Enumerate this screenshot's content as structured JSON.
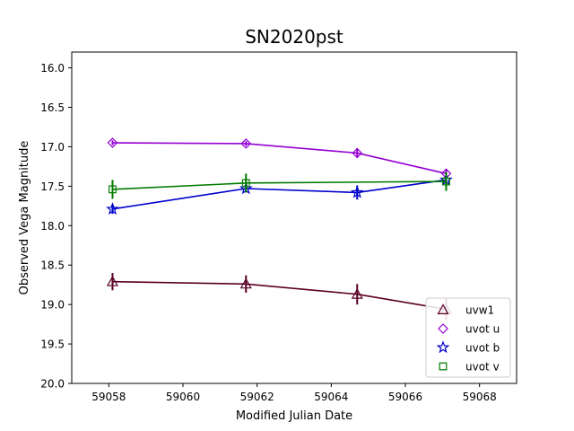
{
  "chart_data": {
    "type": "line",
    "title": "SN2020pst",
    "xlabel": "Modified Julian Date",
    "ylabel": "Observed Vega Magnitude",
    "xlim": [
      59057.0,
      59069.0
    ],
    "ylim": [
      20.0,
      15.8
    ],
    "y_inverted": true,
    "xticks": [
      59058,
      59060,
      59062,
      59064,
      59066,
      59068
    ],
    "yticks": [
      16.0,
      16.5,
      17.0,
      17.5,
      18.0,
      18.5,
      19.0,
      19.5,
      20.0
    ],
    "xtick_labels": [
      "59058",
      "59060",
      "59062",
      "59064",
      "59066",
      "59068"
    ],
    "ytick_labels": [
      "16.0",
      "16.5",
      "17.0",
      "17.5",
      "18.0",
      "18.5",
      "19.0",
      "19.5",
      "20.0"
    ],
    "grid": false,
    "legend_position": "lower-right",
    "series": [
      {
        "name": "uvw1",
        "color": "#5b0026",
        "marker": "triangle",
        "x": [
          59058.1,
          59061.7,
          59064.7,
          59067.1
        ],
        "y": [
          18.71,
          18.74,
          18.87,
          19.06
        ],
        "yerr": [
          0.11,
          0.11,
          0.13,
          0.13
        ]
      },
      {
        "name": "uvot u",
        "color": "#9400d3",
        "marker": "diamond",
        "x": [
          59058.1,
          59061.7,
          59064.7,
          59067.1
        ],
        "y": [
          16.95,
          16.96,
          17.08,
          17.34
        ],
        "yerr": [
          0.03,
          0.03,
          0.06,
          0.06
        ]
      },
      {
        "name": "uvot b",
        "color": "#0000cd",
        "marker": "star",
        "x": [
          59058.1,
          59061.7,
          59064.7,
          59067.1
        ],
        "y": [
          17.79,
          17.53,
          17.58,
          17.42
        ],
        "yerr": [
          0.06,
          0.05,
          0.09,
          0.05
        ]
      },
      {
        "name": "uvot v",
        "color": "#007a00",
        "marker": "square",
        "x": [
          59058.1,
          59061.7,
          59067.1
        ],
        "y": [
          17.54,
          17.46,
          17.44
        ],
        "yerr": [
          0.12,
          0.12,
          0.12
        ]
      }
    ]
  }
}
